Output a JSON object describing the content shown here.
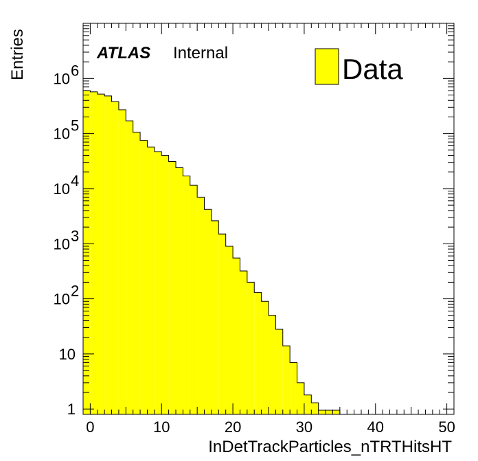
{
  "chart_data": {
    "type": "bar",
    "xlabel": "InDetTrackParticles_nTRTHitsHT",
    "ylabel": "Entries",
    "xlim": [
      -1,
      51
    ],
    "ylim": [
      0.8,
      10000000
    ],
    "log_y": true,
    "x_ticks": [
      "0",
      "10",
      "20",
      "30",
      "40",
      "50"
    ],
    "y_ticks": [
      {
        "value": 1,
        "base": "1",
        "exp": ""
      },
      {
        "value": 10,
        "base": "10",
        "exp": ""
      },
      {
        "value": 100,
        "base": "10",
        "exp": "2"
      },
      {
        "value": 1000,
        "base": "10",
        "exp": "3"
      },
      {
        "value": 10000,
        "base": "10",
        "exp": "4"
      },
      {
        "value": 100000,
        "base": "10",
        "exp": "5"
      },
      {
        "value": 1000000,
        "base": "10",
        "exp": "6"
      }
    ],
    "series": [
      {
        "name": "Data",
        "color": "#ffff00",
        "bin_edges": [
          -1,
          0,
          1,
          2,
          3,
          4,
          5,
          6,
          7,
          8,
          9,
          10,
          11,
          12,
          13,
          14,
          15,
          16,
          17,
          18,
          19,
          20,
          21,
          22,
          23,
          24,
          25,
          26,
          27,
          28,
          29,
          30,
          31,
          32,
          33,
          34,
          35
        ],
        "values": [
          600000,
          570000,
          520000,
          480000,
          380000,
          270000,
          170000,
          105000,
          75000,
          57000,
          47000,
          40000,
          31000,
          24000,
          17000,
          11500,
          7000,
          4200,
          2600,
          1500,
          900,
          550,
          320,
          200,
          130,
          90,
          50,
          28,
          14,
          7,
          3,
          1.8,
          1.3,
          0.95,
          0.95,
          0.95
        ]
      }
    ],
    "legend_position": "top-right",
    "annotation": {
      "bold": "ATLAS",
      "text": "Internal"
    }
  }
}
